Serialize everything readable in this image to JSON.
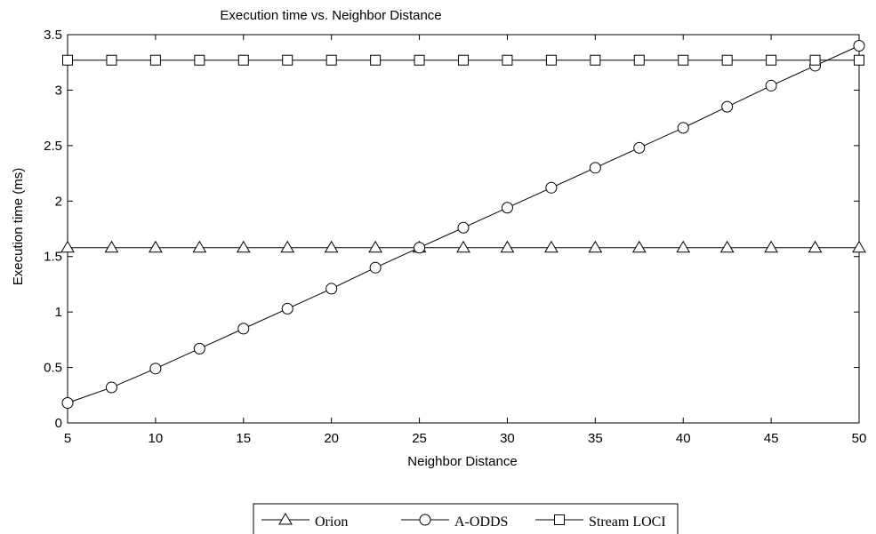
{
  "chart_data": {
    "type": "line",
    "title": "Execution time vs. Neighbor Distance",
    "xlabel": "Neighbor Distance",
    "ylabel": "Execution time (ms)",
    "xlim": [
      5,
      50
    ],
    "ylim": [
      0,
      3.5
    ],
    "xticks": [
      5,
      10,
      15,
      20,
      25,
      30,
      35,
      40,
      45,
      50
    ],
    "yticks": [
      0,
      0.5,
      1,
      1.5,
      2,
      2.5,
      3,
      3.5
    ],
    "xtick_labels": [
      "5",
      "10",
      "15",
      "20",
      "25",
      "30",
      "35",
      "40",
      "45",
      "50"
    ],
    "ytick_labels": [
      "0",
      "0.5",
      "1",
      "1.5",
      "2",
      "2.5",
      "3",
      "3.5"
    ],
    "grid": false,
    "legend_position": "bottom-center",
    "x": [
      5,
      7.5,
      10,
      12.5,
      15,
      17.5,
      20,
      22.5,
      25,
      27.5,
      30,
      32.5,
      35,
      37.5,
      40,
      42.5,
      45,
      47.5,
      50
    ],
    "series": [
      {
        "name": "Orion",
        "marker": "triangle",
        "color": "#000000",
        "values": [
          1.58,
          1.58,
          1.58,
          1.58,
          1.58,
          1.58,
          1.58,
          1.58,
          1.58,
          1.58,
          1.58,
          1.58,
          1.58,
          1.58,
          1.58,
          1.58,
          1.58,
          1.58,
          1.58
        ]
      },
      {
        "name": "A-ODDS",
        "marker": "circle",
        "color": "#000000",
        "values": [
          0.18,
          0.32,
          0.49,
          0.67,
          0.85,
          1.03,
          1.21,
          1.4,
          1.58,
          1.76,
          1.94,
          2.12,
          2.3,
          2.48,
          2.66,
          2.85,
          3.04,
          3.22,
          3.4
        ]
      },
      {
        "name": "Stream LOCI",
        "marker": "square",
        "color": "#000000",
        "values": [
          3.27,
          3.27,
          3.27,
          3.27,
          3.27,
          3.27,
          3.27,
          3.27,
          3.27,
          3.27,
          3.27,
          3.27,
          3.27,
          3.27,
          3.27,
          3.27,
          3.27,
          3.27,
          3.27
        ]
      }
    ]
  }
}
